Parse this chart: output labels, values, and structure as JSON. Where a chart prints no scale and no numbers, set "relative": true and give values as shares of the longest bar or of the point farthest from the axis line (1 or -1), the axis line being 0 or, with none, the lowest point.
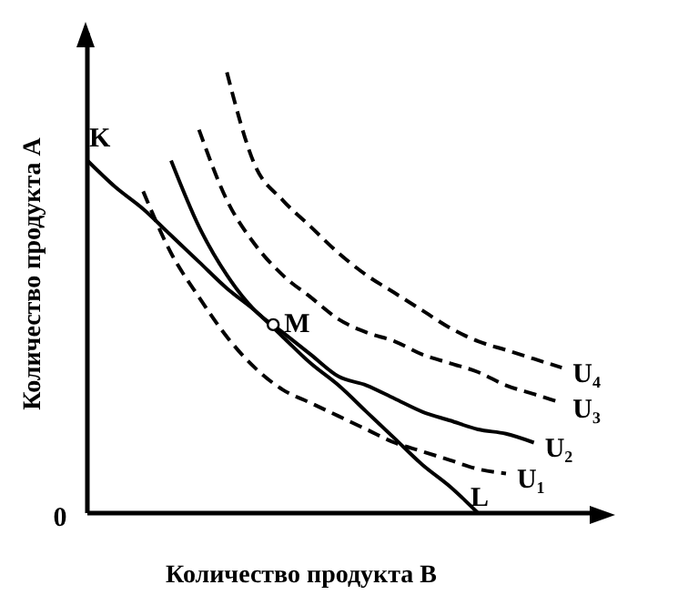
{
  "chart_data": {
    "type": "line",
    "relative": true,
    "xlabel": "Количество продукта B",
    "ylabel": "Количество продукта A",
    "categories": [
      null,
      null,
      null,
      null,
      null,
      null,
      null,
      null,
      null,
      null,
      null,
      null,
      null,
      null,
      null,
      null,
      null,
      null,
      null
    ],
    "series": [
      {
        "color": "#000000",
        "line_style": "solid",
        "values": [
          0.8,
          0.74,
          0.69,
          0.63,
          0.57,
          0.51,
          0.46,
          0.4,
          0.34,
          0.29,
          0.23,
          0.17,
          0.11,
          0.06,
          0,
          null,
          null,
          null,
          null
        ]
      },
      {
        "name": "U₁",
        "color": "#000000",
        "line_style": "dashed",
        "values": [
          null,
          null,
          0.73,
          0.59,
          0.49,
          0.4,
          0.33,
          0.28,
          0.25,
          0.22,
          0.19,
          0.16,
          0.14,
          0.12,
          0.1,
          0.09,
          null,
          null,
          null
        ]
      },
      {
        "name": "U₂",
        "color": "#000000",
        "line_style": "solid",
        "values": [
          null,
          null,
          null,
          0.8,
          0.65,
          0.54,
          0.46,
          0.41,
          0.36,
          0.31,
          0.29,
          0.26,
          0.23,
          0.21,
          0.19,
          0.18,
          0.16,
          null,
          null
        ]
      },
      {
        "name": "U₃",
        "color": "#000000",
        "line_style": "dashed",
        "values": [
          null,
          null,
          null,
          null,
          0.87,
          0.71,
          0.61,
          0.54,
          0.49,
          0.44,
          0.41,
          0.39,
          0.36,
          0.34,
          0.32,
          0.29,
          0.27,
          0.25,
          null
        ]
      },
      {
        "name": "U₄",
        "color": "#000000",
        "line_style": "dashed",
        "values": [
          null,
          null,
          null,
          null,
          null,
          1.0,
          0.79,
          0.71,
          0.65,
          0.59,
          0.54,
          0.5,
          0.46,
          0.42,
          0.39,
          0.37,
          0.35,
          0.33,
          null
        ]
      }
    ],
    "annotations": [
      "K",
      "M",
      "L",
      "0"
    ],
    "marker": "none",
    "legend": false,
    "grid": false
  }
}
